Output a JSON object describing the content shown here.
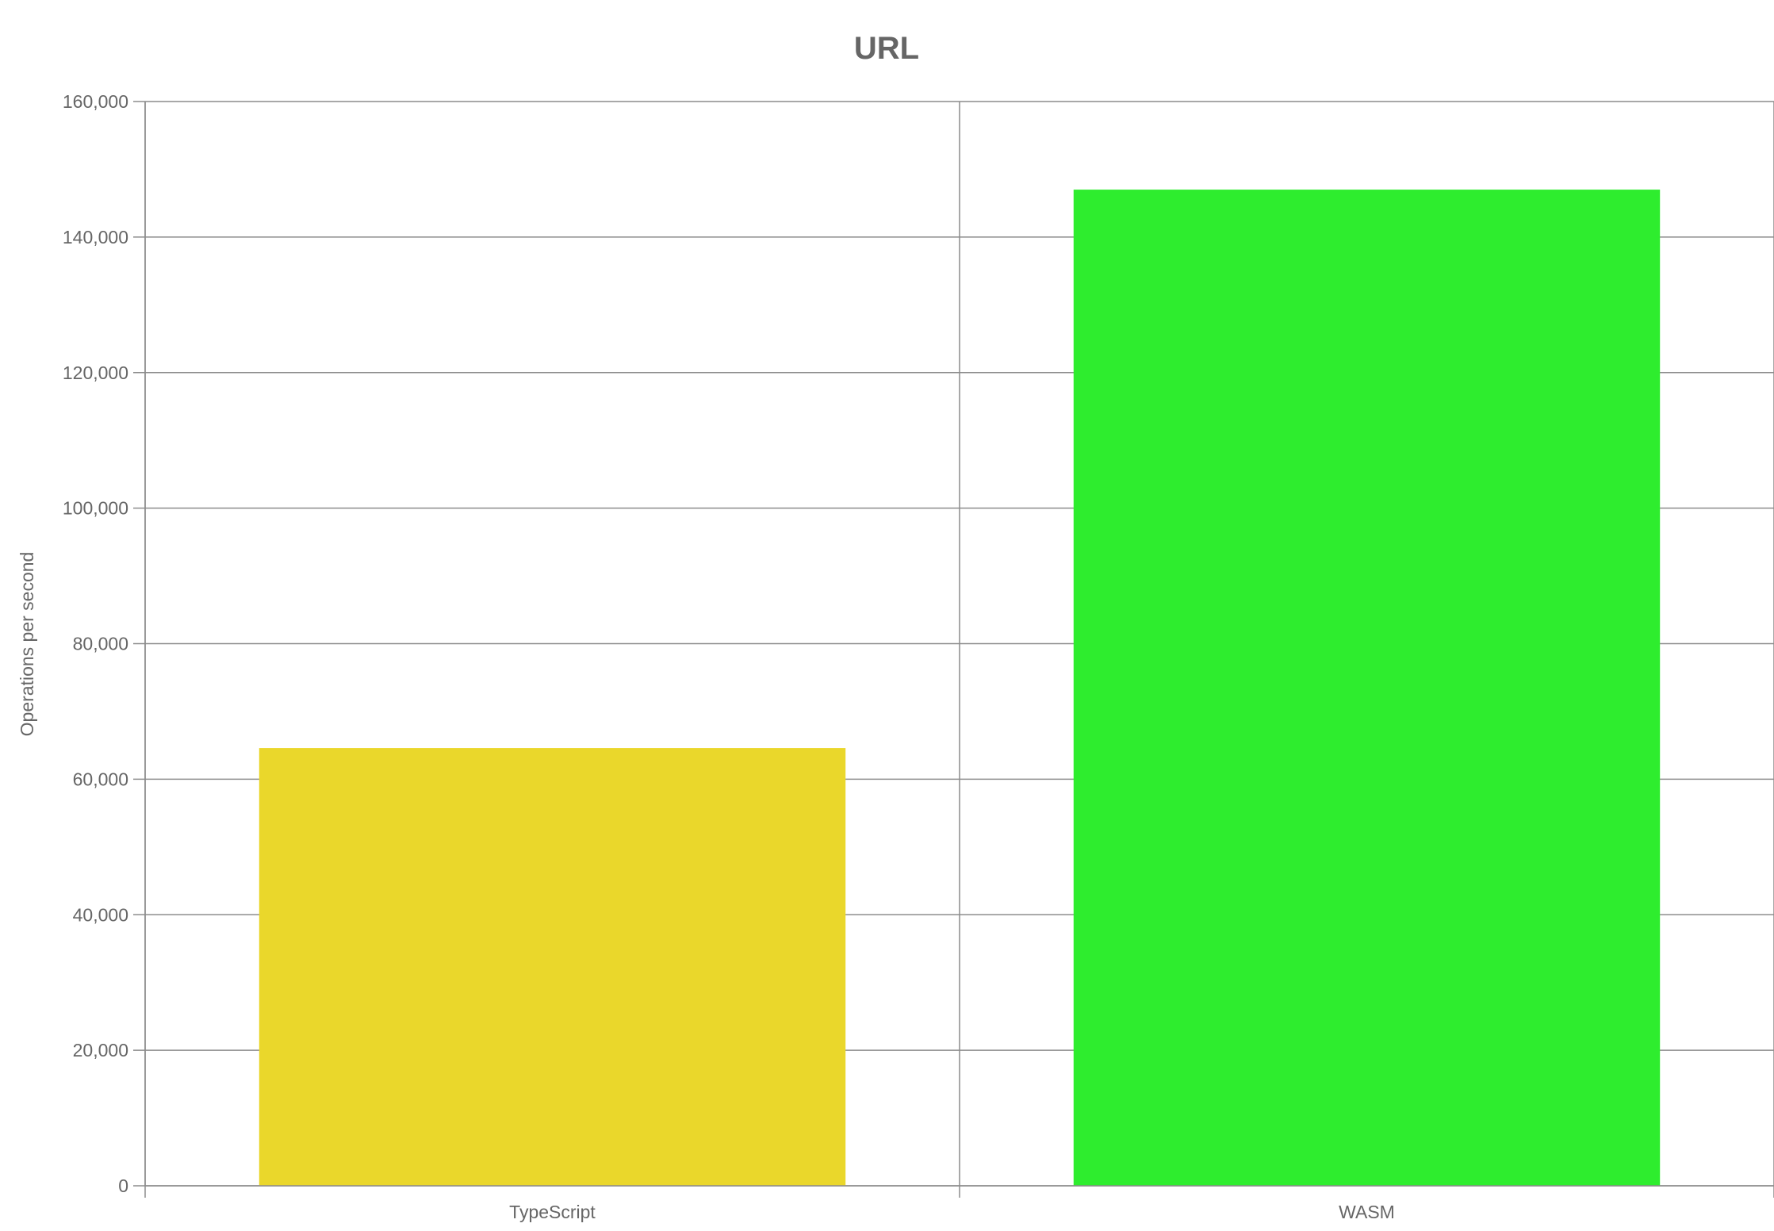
{
  "chart_data": {
    "type": "bar",
    "title": "URL",
    "xlabel": "",
    "ylabel": "Operations per second",
    "categories": [
      "TypeScript",
      "WASM"
    ],
    "values": [
      64600,
      147000
    ],
    "colors": [
      "#ead72b",
      "#2eed2e"
    ],
    "ylim": [
      0,
      160000
    ],
    "yticks": [
      0,
      20000,
      40000,
      60000,
      80000,
      100000,
      120000,
      140000,
      160000
    ],
    "ytick_labels": [
      "0",
      "20,000",
      "40,000",
      "60,000",
      "80,000",
      "100,000",
      "120,000",
      "140,000",
      "160,000"
    ],
    "grid": true,
    "legend": "none"
  }
}
